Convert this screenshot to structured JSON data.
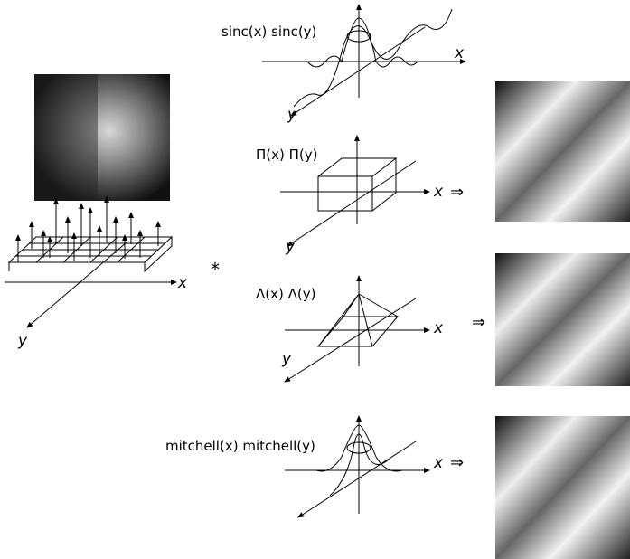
{
  "operator": "*",
  "grid": {
    "x_axis": "x",
    "y_axis": "y"
  },
  "kernels": [
    {
      "label": "sinc(x) sinc(y)",
      "x_axis": "x",
      "y_axis": "y",
      "arrow": null
    },
    {
      "label": "Π(x) Π(y)",
      "x_axis": "x",
      "y_axis": "y",
      "arrow": "⇒"
    },
    {
      "label": "Λ(x) Λ(y)",
      "x_axis": "x",
      "y_axis": "y",
      "arrow": "⇒"
    },
    {
      "label": "mitchell(x) mitchell(y)",
      "x_axis": "x",
      "y_axis": null,
      "arrow": "⇒"
    }
  ]
}
